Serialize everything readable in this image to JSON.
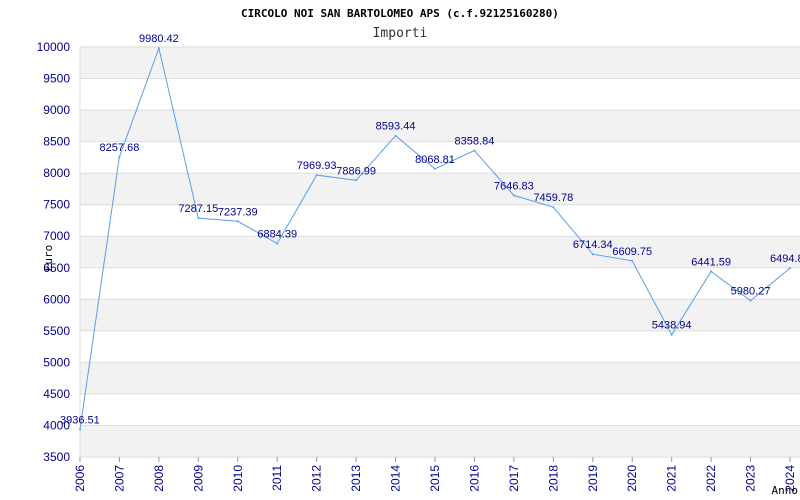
{
  "chart_data": {
    "type": "line",
    "title": "CIRCOLO NOI SAN BARTOLOMEO APS (c.f.92125160280)",
    "subtitle": "Importi",
    "xlabel": "Anno",
    "ylabel": "Euro",
    "ylim": [
      3500,
      10000
    ],
    "yticks": [
      3500,
      4000,
      4500,
      5000,
      5500,
      6000,
      6500,
      7000,
      7500,
      8000,
      8500,
      9000,
      9500,
      10000
    ],
    "categories": [
      "2006",
      "2007",
      "2008",
      "2009",
      "2010",
      "2011",
      "2012",
      "2013",
      "2014",
      "2015",
      "2016",
      "2017",
      "2018",
      "2019",
      "2020",
      "2021",
      "2022",
      "2023",
      "2024"
    ],
    "series": [
      {
        "values": [
          3936.51,
          8257.68,
          9980.42,
          7287.15,
          7237.39,
          6884.39,
          7969.93,
          7886.99,
          8593.44,
          8068.81,
          8358.84,
          7646.83,
          7459.78,
          6714.34,
          6609.75,
          5438.94,
          6441.59,
          5980.27,
          6494.8
        ],
        "labels": [
          "3936.51",
          "8257.68",
          "9980.42",
          "7287.15",
          "7237.39",
          "6884.39",
          "7969.93",
          "7886.99",
          "8593.44",
          "8068.81",
          "8358.84",
          "7646.83",
          "7459.78",
          "6714.34",
          "6609.75",
          "5438.94",
          "6441.59",
          "5980.27",
          "6494.8"
        ],
        "color": "#5a9fe6"
      }
    ],
    "grid": true,
    "band_color": "#f2f2f2",
    "grid_color": "#dddddd",
    "tick_color": "#00008b"
  }
}
